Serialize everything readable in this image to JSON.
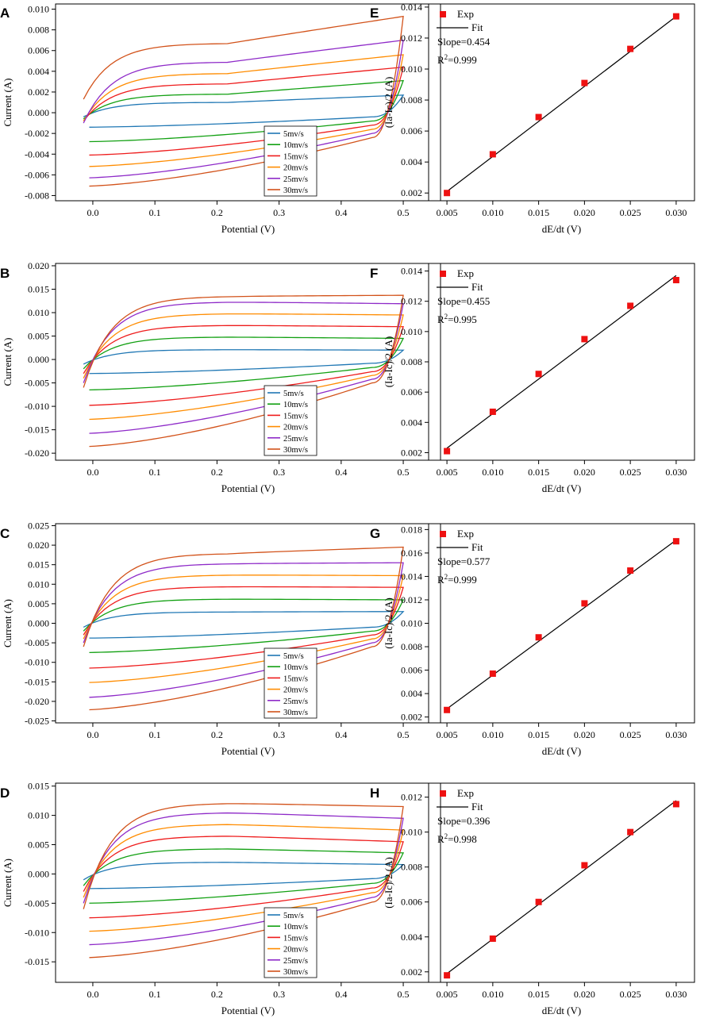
{
  "colors": {
    "5mv": "#1f77b4",
    "10mv": "#12a012",
    "15mv": "#ee1c1c",
    "20mv": "#ff8c00",
    "25mv": "#8e2ac8",
    "30mv": "#d2521a",
    "exp": "#ee1111",
    "fit": "#000000"
  },
  "chart_data": [
    {
      "panel": "A",
      "type": "line",
      "subtype": "cyclic-voltammetry",
      "xlabel": "Potential (V)",
      "ylabel": "Current (A)",
      "xlim": [
        -0.06,
        0.56
      ],
      "ylim": [
        -0.0085,
        0.0105
      ],
      "xticks": [
        "0.0",
        "0.1",
        "0.2",
        "0.3",
        "0.4",
        "0.5"
      ],
      "yticks": [
        "-0.008",
        "-0.006",
        "-0.004",
        "-0.002",
        "0.000",
        "0.002",
        "0.004",
        "0.006",
        "0.008",
        "0.010"
      ],
      "legend_position": "bottom-right",
      "series": [
        {
          "name": "5mv/s",
          "color_key": "5mv",
          "top_start": -0.0004,
          "top_mid": 0.001,
          "top_end": 0.0017,
          "bottom_start": -0.0014,
          "bottom_end": -0.0004
        },
        {
          "name": "10mv/s",
          "color_key": "10mv",
          "top_start": -0.0006,
          "top_mid": 0.0018,
          "top_end": 0.0031,
          "bottom_start": -0.0028,
          "bottom_end": -0.0008
        },
        {
          "name": "15mv/s",
          "color_key": "15mv",
          "top_start": -0.0008,
          "top_mid": 0.0028,
          "top_end": 0.0044,
          "bottom_start": -0.0041,
          "bottom_end": -0.0012
        },
        {
          "name": "20mv/s",
          "color_key": "20mv",
          "top_start": -0.0008,
          "top_mid": 0.0038,
          "top_end": 0.0056,
          "bottom_start": -0.0052,
          "bottom_end": -0.0016
        },
        {
          "name": "25mv/s",
          "color_key": "25mv",
          "top_start": -0.001,
          "top_mid": 0.0049,
          "top_end": 0.007,
          "bottom_start": -0.0063,
          "bottom_end": -0.002
        },
        {
          "name": "30mv/s",
          "color_key": "30mv",
          "top_start": 0.0013,
          "top_mid": 0.0067,
          "top_end": 0.0093,
          "bottom_start": -0.0071,
          "bottom_end": -0.0024
        }
      ]
    },
    {
      "panel": "E",
      "type": "scatter",
      "subtype": "linear-fit",
      "xlabel": "dE/dt (V)",
      "ylabel": "(Ia-Ic)/2 (A)",
      "xlim": [
        0.003,
        0.032
      ],
      "ylim": [
        0.0015,
        0.0142
      ],
      "xticks": [
        "0.005",
        "0.010",
        "0.015",
        "0.020",
        "0.025",
        "0.030"
      ],
      "yticks": [
        "0.002",
        "0.004",
        "0.006",
        "0.008",
        "0.010",
        "0.012",
        "0.014"
      ],
      "legend_exp": "Exp",
      "legend_fit": "Fit",
      "slope_label": "Slope=0.454",
      "r2_prefix": "R",
      "r2_value": "=0.999",
      "x": [
        0.005,
        0.01,
        0.015,
        0.02,
        0.025,
        0.03
      ],
      "y": [
        0.002,
        0.0045,
        0.0069,
        0.0091,
        0.0113,
        0.0134
      ],
      "fit_line": {
        "x": [
          0.005,
          0.03
        ],
        "y": [
          0.0021,
          0.0134
        ]
      }
    },
    {
      "panel": "B",
      "type": "line",
      "subtype": "cyclic-voltammetry",
      "xlabel": "Potential (V)",
      "ylabel": "Current (A)",
      "xlim": [
        -0.06,
        0.56
      ],
      "ylim": [
        -0.0215,
        0.0205
      ],
      "xticks": [
        "0.0",
        "0.1",
        "0.2",
        "0.3",
        "0.4",
        "0.5"
      ],
      "yticks": [
        "-0.020",
        "-0.015",
        "-0.010",
        "-0.005",
        "0.000",
        "0.005",
        "0.010",
        "0.015",
        "0.020"
      ],
      "legend_position": "bottom-right",
      "series": [
        {
          "name": "5mv/s",
          "color_key": "5mv",
          "top_start": -0.001,
          "top_mid": 0.0021,
          "top_end": 0.002,
          "bottom_start": -0.003,
          "bottom_end": -0.0008
        },
        {
          "name": "10mv/s",
          "color_key": "10mv",
          "top_start": -0.002,
          "top_mid": 0.0048,
          "top_end": 0.0045,
          "bottom_start": -0.0065,
          "bottom_end": -0.0017
        },
        {
          "name": "15mv/s",
          "color_key": "15mv",
          "top_start": -0.003,
          "top_mid": 0.0073,
          "top_end": 0.007,
          "bottom_start": -0.0098,
          "bottom_end": -0.0026
        },
        {
          "name": "20mv/s",
          "color_key": "20mv",
          "top_start": -0.004,
          "top_mid": 0.0098,
          "top_end": 0.0095,
          "bottom_start": -0.0128,
          "bottom_end": -0.0034
        },
        {
          "name": "25mv/s",
          "color_key": "25mv",
          "top_start": -0.005,
          "top_mid": 0.0123,
          "top_end": 0.0119,
          "bottom_start": -0.0158,
          "bottom_end": -0.0042
        },
        {
          "name": "30mv/s",
          "color_key": "30mv",
          "top_start": -0.006,
          "top_mid": 0.0135,
          "top_end": 0.0137,
          "bottom_start": -0.0186,
          "bottom_end": -0.005
        }
      ]
    },
    {
      "panel": "F",
      "type": "scatter",
      "subtype": "linear-fit",
      "xlabel": "dE/dt (V)",
      "ylabel": "(Ia-Ic)/2 (A)",
      "xlim": [
        0.003,
        0.032
      ],
      "ylim": [
        0.0015,
        0.0145
      ],
      "xticks": [
        "0.005",
        "0.010",
        "0.015",
        "0.020",
        "0.025",
        "0.030"
      ],
      "yticks": [
        "0.002",
        "0.004",
        "0.006",
        "0.008",
        "0.010",
        "0.012",
        "0.014"
      ],
      "legend_exp": "Exp",
      "legend_fit": "Fit",
      "slope_label": "Slope=0.455",
      "r2_prefix": "R",
      "r2_value": "=0.995",
      "x": [
        0.005,
        0.01,
        0.015,
        0.02,
        0.025,
        0.03
      ],
      "y": [
        0.0021,
        0.0047,
        0.0072,
        0.0095,
        0.0117,
        0.0134
      ],
      "fit_line": {
        "x": [
          0.005,
          0.03
        ],
        "y": [
          0.0023,
          0.0137
        ]
      }
    },
    {
      "panel": "C",
      "type": "line",
      "subtype": "cyclic-voltammetry",
      "xlabel": "Potential (V)",
      "ylabel": "Current (A)",
      "xlim": [
        -0.06,
        0.56
      ],
      "ylim": [
        -0.0255,
        0.0255
      ],
      "xticks": [
        "0.0",
        "0.1",
        "0.2",
        "0.3",
        "0.4",
        "0.5"
      ],
      "yticks": [
        "-0.025",
        "-0.020",
        "-0.015",
        "-0.010",
        "-0.005",
        "0.000",
        "0.005",
        "0.010",
        "0.015",
        "0.020",
        "0.025"
      ],
      "legend_position": "bottom-right",
      "series": [
        {
          "name": "5mv/s",
          "color_key": "5mv",
          "top_start": -0.001,
          "top_mid": 0.0029,
          "top_end": 0.003,
          "bottom_start": -0.0038,
          "bottom_end": -0.001
        },
        {
          "name": "10mv/s",
          "color_key": "10mv",
          "top_start": -0.002,
          "top_mid": 0.0062,
          "top_end": 0.006,
          "bottom_start": -0.0075,
          "bottom_end": -0.002
        },
        {
          "name": "15mv/s",
          "color_key": "15mv",
          "top_start": -0.003,
          "top_mid": 0.0094,
          "top_end": 0.0092,
          "bottom_start": -0.0115,
          "bottom_end": -0.003
        },
        {
          "name": "20mv/s",
          "color_key": "20mv",
          "top_start": -0.004,
          "top_mid": 0.0124,
          "top_end": 0.0122,
          "bottom_start": -0.0152,
          "bottom_end": -0.004
        },
        {
          "name": "25mv/s",
          "color_key": "25mv",
          "top_start": -0.005,
          "top_mid": 0.0153,
          "top_end": 0.0155,
          "bottom_start": -0.019,
          "bottom_end": -0.005
        },
        {
          "name": "30mv/s",
          "color_key": "30mv",
          "top_start": -0.006,
          "top_mid": 0.0179,
          "top_end": 0.0195,
          "bottom_start": -0.0222,
          "bottom_end": -0.006
        }
      ]
    },
    {
      "panel": "G",
      "type": "scatter",
      "subtype": "linear-fit",
      "xlabel": "dE/dt (V)",
      "ylabel": "(Ia-Ic)/2 (A)",
      "xlim": [
        0.003,
        0.032
      ],
      "ylim": [
        0.0015,
        0.0185
      ],
      "xticks": [
        "0.005",
        "0.010",
        "0.015",
        "0.020",
        "0.025",
        "0.030"
      ],
      "yticks": [
        "0.002",
        "0.004",
        "0.006",
        "0.008",
        "0.010",
        "0.012",
        "0.014",
        "0.016",
        "0.018"
      ],
      "legend_exp": "Exp",
      "legend_fit": "Fit",
      "slope_label": "Slope=0.577",
      "r2_prefix": "R",
      "r2_value": "=0.999",
      "x": [
        0.005,
        0.01,
        0.015,
        0.02,
        0.025,
        0.03
      ],
      "y": [
        0.0026,
        0.0057,
        0.0088,
        0.0117,
        0.0145,
        0.017
      ],
      "fit_line": {
        "x": [
          0.005,
          0.03
        ],
        "y": [
          0.0027,
          0.0171
        ]
      }
    },
    {
      "panel": "D",
      "type": "line",
      "subtype": "cyclic-voltammetry",
      "xlabel": "Potential (V)",
      "ylabel": "Current (A)",
      "xlim": [
        -0.06,
        0.56
      ],
      "ylim": [
        -0.0185,
        0.0155
      ],
      "xticks": [
        "0.0",
        "0.1",
        "0.2",
        "0.3",
        "0.4",
        "0.5"
      ],
      "yticks": [
        "-0.015",
        "-0.010",
        "-0.005",
        "0.000",
        "0.005",
        "0.010",
        "0.015"
      ],
      "legend_position": "bottom-right",
      "series": [
        {
          "name": "5mv/s",
          "color_key": "5mv",
          "top_start": -0.001,
          "top_mid": 0.002,
          "top_end": 0.0016,
          "bottom_start": -0.0025,
          "bottom_end": -0.0008
        },
        {
          "name": "10mv/s",
          "color_key": "10mv",
          "top_start": -0.002,
          "top_mid": 0.0043,
          "top_end": 0.0036,
          "bottom_start": -0.005,
          "bottom_end": -0.0016
        },
        {
          "name": "15mv/s",
          "color_key": "15mv",
          "top_start": -0.003,
          "top_mid": 0.0065,
          "top_end": 0.0055,
          "bottom_start": -0.0075,
          "bottom_end": -0.0024
        },
        {
          "name": "20mv/s",
          "color_key": "20mv",
          "top_start": -0.004,
          "top_mid": 0.0085,
          "top_end": 0.0075,
          "bottom_start": -0.0098,
          "bottom_end": -0.0032
        },
        {
          "name": "25mv/s",
          "color_key": "25mv",
          "top_start": -0.005,
          "top_mid": 0.0105,
          "top_end": 0.0095,
          "bottom_start": -0.0121,
          "bottom_end": -0.004
        },
        {
          "name": "30mv/s",
          "color_key": "30mv",
          "top_start": -0.006,
          "top_mid": 0.0121,
          "top_end": 0.0115,
          "bottom_start": -0.0143,
          "bottom_end": -0.0048
        }
      ]
    },
    {
      "panel": "H",
      "type": "scatter",
      "subtype": "linear-fit",
      "xlabel": "dE/dt (V)",
      "ylabel": "(Ia-Ic)/2 (A)",
      "xlim": [
        0.003,
        0.032
      ],
      "ylim": [
        0.0014,
        0.0128
      ],
      "xticks": [
        "0.005",
        "0.010",
        "0.015",
        "0.020",
        "0.025",
        "0.030"
      ],
      "yticks": [
        "0.002",
        "0.004",
        "0.006",
        "0.008",
        "0.010",
        "0.012"
      ],
      "legend_exp": "Exp",
      "legend_fit": "Fit",
      "slope_label": "Slope=0.396",
      "r2_prefix": "R",
      "r2_value": "=0.998",
      "x": [
        0.005,
        0.01,
        0.015,
        0.02,
        0.025,
        0.03
      ],
      "y": [
        0.0018,
        0.0039,
        0.006,
        0.0081,
        0.01,
        0.0116
      ],
      "fit_line": {
        "x": [
          0.005,
          0.03
        ],
        "y": [
          0.0019,
          0.0118
        ]
      }
    }
  ]
}
